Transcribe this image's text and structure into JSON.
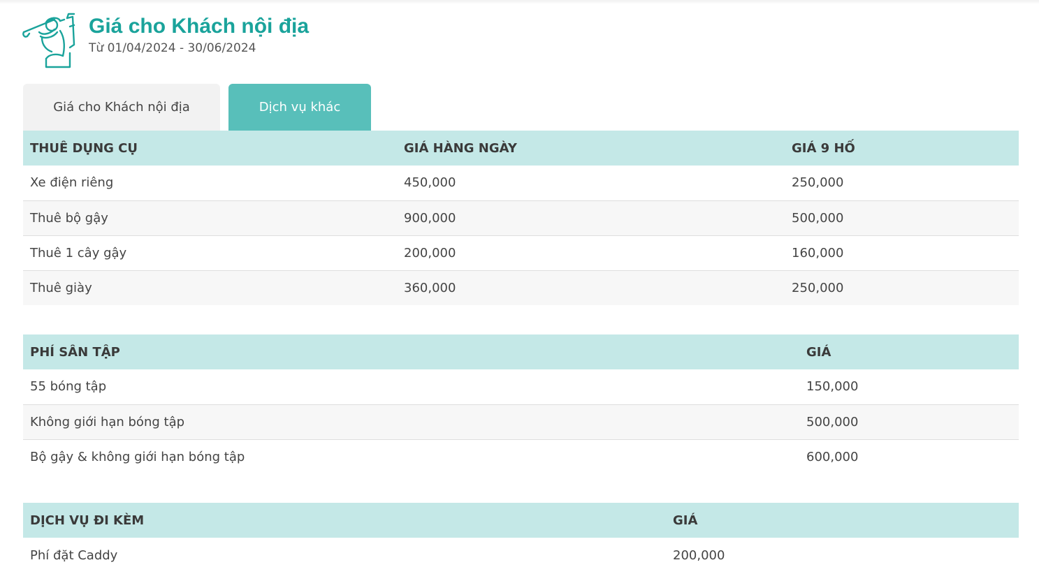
{
  "header": {
    "title": "Giá cho Khách nội địa",
    "date_range": "Từ 01/04/2024 - 30/06/2024",
    "icon": "golfer-icon",
    "accent_color": "#1aa39b"
  },
  "tabs": [
    {
      "label": "Giá cho Khách nội địa",
      "active": false
    },
    {
      "label": "Dịch vụ khác",
      "active": true
    }
  ],
  "rental": {
    "headers": [
      "THUÊ DỤNG CỤ",
      "GIÁ HÀNG NGÀY",
      "GIÁ 9 HỐ"
    ],
    "rows": [
      [
        "Xe điện riêng",
        "450,000",
        "250,000"
      ],
      [
        "Thuê bộ gậy",
        "900,000",
        "500,000"
      ],
      [
        "Thuê 1 cây gậy",
        "200,000",
        "160,000"
      ],
      [
        "Thuê giày",
        "360,000",
        "250,000"
      ]
    ]
  },
  "practice": {
    "headers": [
      "PHÍ SÂN TẬP",
      "GIÁ"
    ],
    "rows": [
      [
        "55 bóng tập",
        "150,000"
      ],
      [
        "Không giới hạn bóng tập",
        "500,000"
      ],
      [
        "Bộ gậy & không giới hạn bóng tập",
        "600,000"
      ]
    ]
  },
  "extra": {
    "headers": [
      "DỊCH VỤ ĐI KÈM",
      "GIÁ"
    ],
    "rows": [
      [
        "Phí đặt Caddy",
        "200,000"
      ]
    ]
  }
}
